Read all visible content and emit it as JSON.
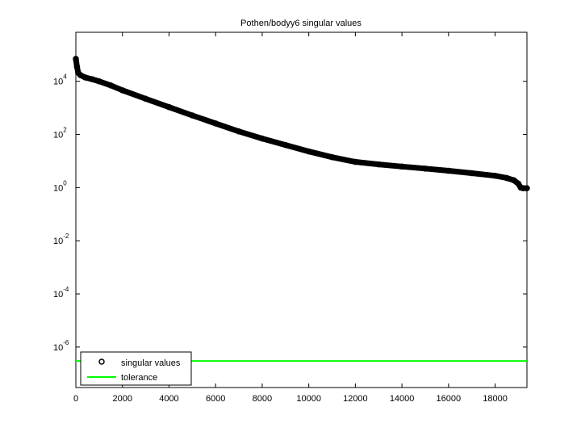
{
  "chart_data": {
    "type": "scatter",
    "title": "Pothen/bodyy6 singular values",
    "log_y": true,
    "xlim": [
      0,
      19366
    ],
    "ylim": [
      3e-08,
      700000
    ],
    "xticks": [
      0,
      2000,
      4000,
      6000,
      8000,
      10000,
      12000,
      14000,
      16000,
      18000
    ],
    "yticks": [
      {
        "value": 1e-06,
        "label": "10^-6"
      },
      {
        "value": 0.0001,
        "label": "10^-4"
      },
      {
        "value": 0.01,
        "label": "10^-2"
      },
      {
        "value": 1,
        "label": "10^0"
      },
      {
        "value": 100,
        "label": "10^2"
      },
      {
        "value": 10000,
        "label": "10^4"
      }
    ],
    "legend": "lower-left",
    "series": [
      {
        "name": "singular values",
        "color": "#000000",
        "x": [
          0,
          50,
          100,
          200,
          400,
          700,
          1000,
          1500,
          2000,
          3000,
          4000,
          5000,
          6000,
          7000,
          8000,
          9000,
          10000,
          11000,
          12000,
          13000,
          14000,
          15000,
          16000,
          17000,
          18000,
          18500,
          18800,
          19000,
          19100,
          19200,
          19366
        ],
        "values": [
          70000,
          35000,
          21000,
          17000,
          14000,
          12000,
          10000,
          7000,
          4600,
          2200,
          1070,
          520,
          260,
          130,
          70,
          40,
          23,
          14,
          9.3,
          7.5,
          6.2,
          5.2,
          4.3,
          3.5,
          2.8,
          2.3,
          1.9,
          1.4,
          1.0,
          0.95,
          0.95
        ]
      },
      {
        "name": "tolerance",
        "color": "#00ff00",
        "value": 3e-07
      }
    ]
  }
}
